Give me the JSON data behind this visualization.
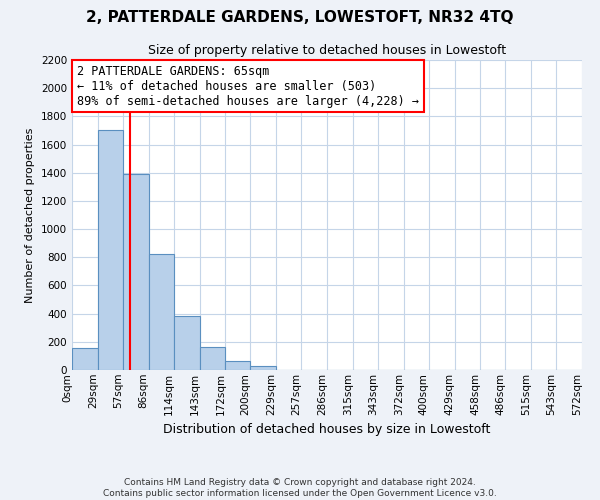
{
  "title": "2, PATTERDALE GARDENS, LOWESTOFT, NR32 4TQ",
  "subtitle": "Size of property relative to detached houses in Lowestoft",
  "xlabel": "Distribution of detached houses by size in Lowestoft",
  "ylabel": "Number of detached properties",
  "bin_edges": [
    0,
    29,
    57,
    86,
    114,
    143,
    172,
    200,
    229,
    257,
    286,
    315,
    343,
    372,
    400,
    429,
    458,
    486,
    515,
    543,
    572
  ],
  "bin_labels": [
    "0sqm",
    "29sqm",
    "57sqm",
    "86sqm",
    "114sqm",
    "143sqm",
    "172sqm",
    "200sqm",
    "229sqm",
    "257sqm",
    "286sqm",
    "315sqm",
    "343sqm",
    "372sqm",
    "400sqm",
    "429sqm",
    "458sqm",
    "486sqm",
    "515sqm",
    "543sqm",
    "572sqm"
  ],
  "bar_heights": [
    155,
    1700,
    1390,
    820,
    380,
    160,
    65,
    30,
    0,
    0,
    0,
    0,
    0,
    0,
    0,
    0,
    0,
    0,
    0,
    0
  ],
  "bar_color": "#b8d0ea",
  "bar_edge_color": "#5a8fc0",
  "property_line_x": 65,
  "property_line_color": "red",
  "annotation_line1": "2 PATTERDALE GARDENS: 65sqm",
  "annotation_line2": "← 11% of detached houses are smaller (503)",
  "annotation_line3": "89% of semi-detached houses are larger (4,228) →",
  "annotation_box_color": "white",
  "annotation_box_edge_color": "red",
  "ylim": [
    0,
    2200
  ],
  "yticks": [
    0,
    200,
    400,
    600,
    800,
    1000,
    1200,
    1400,
    1600,
    1800,
    2000,
    2200
  ],
  "footer_line1": "Contains HM Land Registry data © Crown copyright and database right 2024.",
  "footer_line2": "Contains public sector information licensed under the Open Government Licence v3.0.",
  "background_color": "#eef2f8",
  "plot_background": "#ffffff",
  "grid_color": "#c5d5e8",
  "title_fontsize": 11,
  "subtitle_fontsize": 9,
  "ylabel_fontsize": 8,
  "xlabel_fontsize": 9,
  "tick_fontsize": 7.5,
  "annotation_fontsize": 8.5,
  "footer_fontsize": 6.5
}
